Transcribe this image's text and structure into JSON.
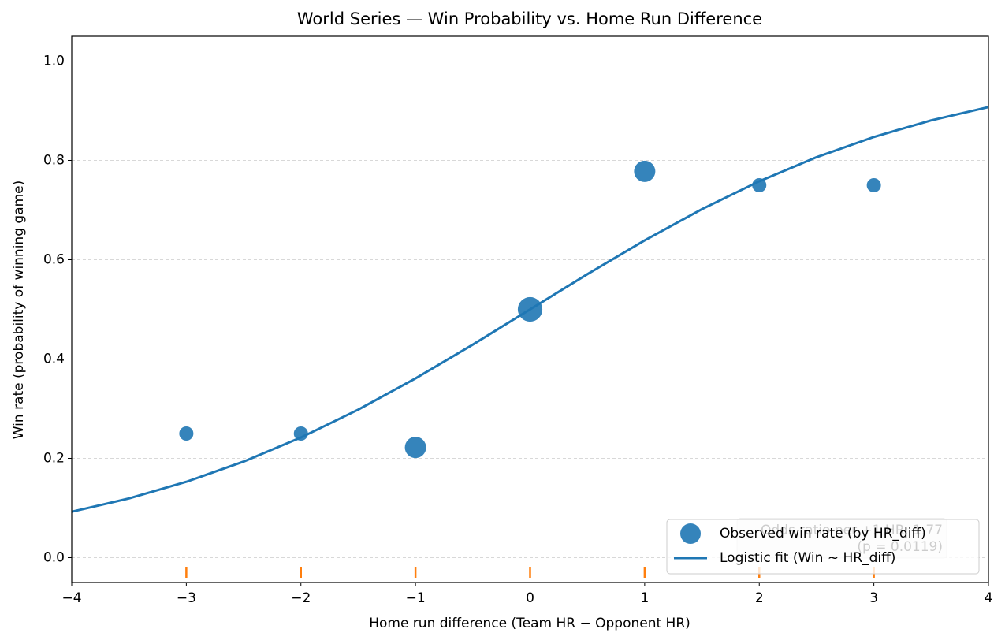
{
  "chart_data": {
    "type": "scatter",
    "title": "World Series — Win Probability vs. Home Run Difference",
    "xlabel": "Home run difference (Team HR − Opponent HR)",
    "ylabel": "Win rate (probability of winning game)",
    "xlim": [
      -4,
      4
    ],
    "ylim": [
      -0.05,
      1.05
    ],
    "xticks": [
      {
        "value": -4,
        "label": "−4"
      },
      {
        "value": -3,
        "label": "−3"
      },
      {
        "value": -2,
        "label": "−2"
      },
      {
        "value": -1,
        "label": "−1"
      },
      0,
      1,
      2,
      3,
      4
    ],
    "yticks": [
      {
        "value": 0,
        "label": "0.0"
      },
      0.2,
      0.4,
      0.6,
      0.8,
      {
        "value": 1,
        "label": "1.0"
      }
    ],
    "grid": true,
    "legend_position": "lower right",
    "series": [
      {
        "name": "Observed win rate (by HR_diff)",
        "color": "#1f77b4",
        "x": [
          -3,
          -2,
          -1,
          0,
          1,
          2,
          3
        ],
        "values": [
          0.25,
          0.25,
          0.222,
          0.5,
          0.778,
          0.75,
          0.75
        ],
        "sizes": [
          4,
          4,
          9,
          12,
          9,
          4,
          4
        ]
      },
      {
        "name": "Logistic fit (Win ~ HR_diff)",
        "color": "#1f77b4",
        "x": [
          -4,
          -3.5,
          -3,
          -2.5,
          -2,
          -1.5,
          -1,
          -0.5,
          0,
          0.5,
          1,
          1.5,
          2,
          2.5,
          3,
          3.5,
          4
        ],
        "values": [
          0.0925,
          0.1193,
          0.1528,
          0.1935,
          0.242,
          0.2981,
          0.361,
          0.4291,
          0.5,
          0.5709,
          0.639,
          0.7019,
          0.758,
          0.8065,
          0.8472,
          0.8807,
          0.9075
        ]
      }
    ],
    "rug": {
      "color": "#ff7f0e",
      "x": [
        -3,
        -2,
        -1,
        0,
        1,
        2,
        3
      ]
    },
    "annotation": [
      "Odds ratio per +1 HR: 1.77",
      "(p = 0.0119)"
    ]
  }
}
